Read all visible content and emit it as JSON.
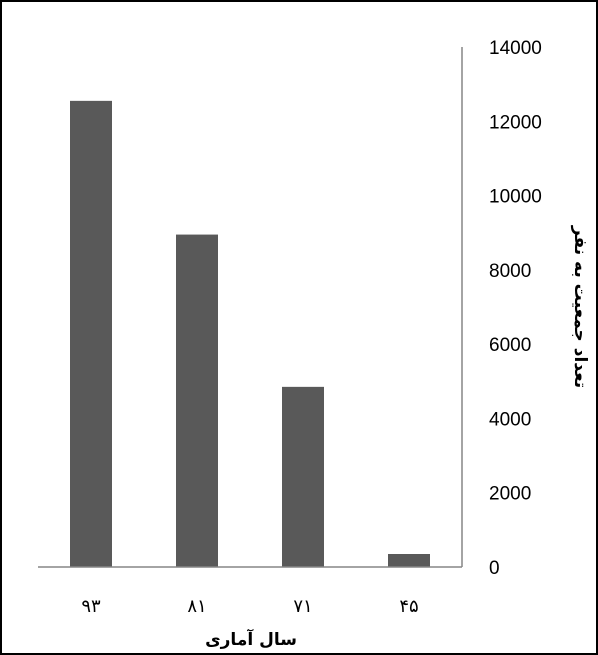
{
  "chart_data": {
    "type": "bar",
    "categories": [
      "۹۳",
      "۸۱",
      "۷۱",
      "۴۵"
    ],
    "values": [
      12550,
      8950,
      4850,
      350
    ],
    "xlabel": "سال آماری",
    "ylabel": "تعداد جمعیت به نفر",
    "ylim": [
      0,
      14000
    ],
    "yticks": [
      0,
      2000,
      4000,
      6000,
      8000,
      10000,
      12000,
      14000
    ],
    "y_axis_side": "right",
    "grid": false,
    "bar_color": "#595959",
    "axis_color": "#868686",
    "border_color": "#000000"
  }
}
